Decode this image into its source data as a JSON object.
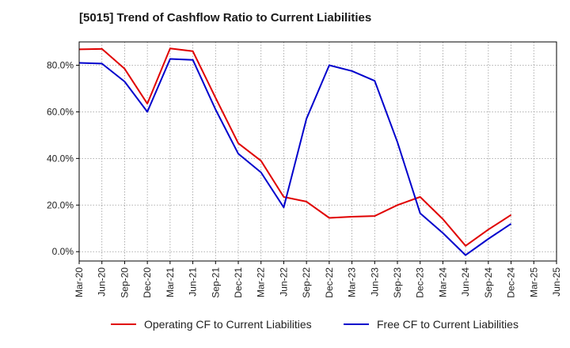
{
  "title": "[5015]  Trend of Cashflow Ratio to Current Liabilities",
  "colors": {
    "operating": "#e00000",
    "free": "#0000cc",
    "grid": "#999999",
    "axis": "#000000"
  },
  "chart_data": {
    "type": "line",
    "title": "[5015]  Trend of Cashflow Ratio to Current Liabilities",
    "xlabel": "",
    "ylabel": "",
    "ylim": [
      -4,
      90
    ],
    "yticks": [
      0,
      20,
      40,
      60,
      80
    ],
    "ytick_labels": [
      "0.0%",
      "20.0%",
      "40.0%",
      "60.0%",
      "80.0%"
    ],
    "grid": true,
    "legend_position": "bottom",
    "categories": [
      "Mar-20",
      "Jun-20",
      "Sep-20",
      "Dec-20",
      "Mar-21",
      "Jun-21",
      "Sep-21",
      "Dec-21",
      "Mar-22",
      "Jun-22",
      "Sep-22",
      "Dec-22",
      "Mar-23",
      "Jun-23",
      "Sep-23",
      "Dec-23",
      "Mar-24",
      "Jun-24",
      "Sep-24",
      "Dec-24",
      "Mar-25",
      "Jun-25"
    ],
    "series": [
      {
        "name": "Operating CF to Current Liabilities",
        "color": "#e00000",
        "values": [
          86.8,
          87.0,
          78.5,
          63.5,
          87.2,
          86.0,
          66.0,
          46.5,
          39.0,
          23.5,
          21.5,
          14.5,
          15.0,
          15.3,
          20.0,
          23.5,
          14.0,
          2.5,
          9.5,
          15.8,
          null,
          null
        ]
      },
      {
        "name": "Free CF to Current Liabilities",
        "color": "#0000cc",
        "values": [
          81.0,
          80.7,
          73.0,
          60.0,
          82.7,
          82.3,
          61.0,
          42.0,
          34.0,
          19.0,
          57.0,
          80.0,
          77.5,
          73.3,
          47.0,
          16.5,
          8.0,
          -1.5,
          5.5,
          12.0,
          null,
          null
        ]
      }
    ]
  }
}
